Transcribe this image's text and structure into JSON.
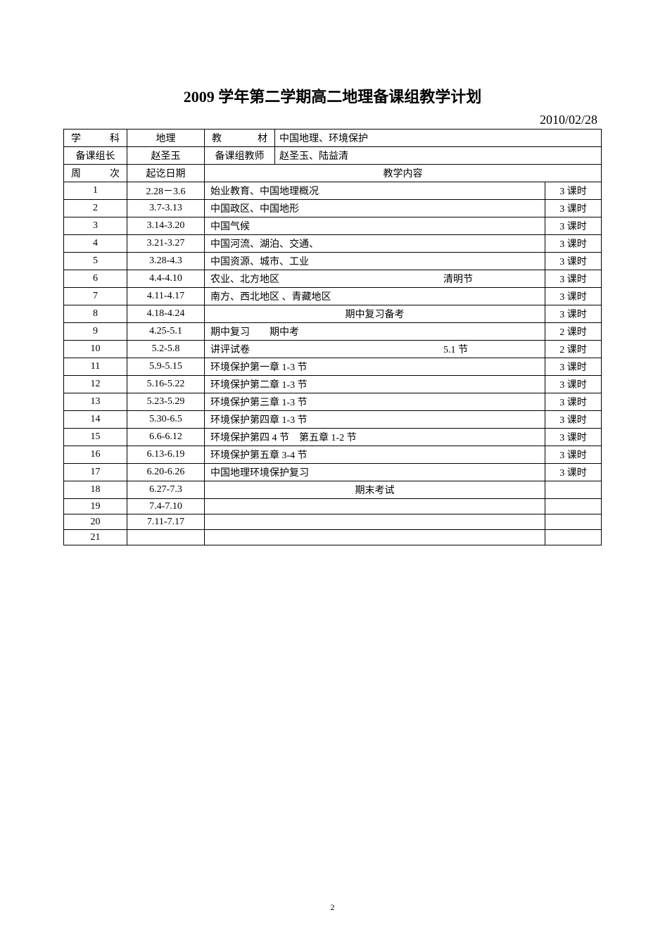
{
  "document": {
    "title": "2009 学年第二学期高二地理备课组教学计划",
    "date": "2010/02/28",
    "page_number": "2",
    "colors": {
      "background": "#ffffff",
      "text": "#000000",
      "border": "#000000"
    },
    "typography": {
      "title_fontsize": 22,
      "date_fontsize": 18,
      "body_fontsize": 14,
      "font_family": "SimSun"
    }
  },
  "header": {
    "subject_label": "学　　科",
    "subject_value": "地理",
    "textbook_label": "教　　材",
    "textbook_value": "中国地理、环境保护",
    "leader_label": "备课组长",
    "leader_value": "赵圣玉",
    "teachers_label": "备课组教师",
    "teachers_value": "赵圣玉、陆益清"
  },
  "columns": {
    "week": "周　　次",
    "date_range": "起讫日期",
    "content": "教学内容"
  },
  "rows": [
    {
      "week": "1",
      "date": "2.28－3.6",
      "content": "始业教育、中国地理概况",
      "note": "",
      "hours": "3 课时"
    },
    {
      "week": "2",
      "date": "3.7-3.13",
      "content": "中国政区、中国地形",
      "note": "",
      "hours": "3 课时"
    },
    {
      "week": "3",
      "date": "3.14-3.20",
      "content": "中国气候",
      "note": "",
      "hours": "3 课时"
    },
    {
      "week": "4",
      "date": "3.21-3.27",
      "content": "中国河流、湖泊、交通、",
      "note": "",
      "hours": "3 课时"
    },
    {
      "week": "5",
      "date": "3.28-4.3",
      "content": "中国资源、城市、工业",
      "note": "",
      "hours": "3 课时"
    },
    {
      "week": "6",
      "date": "4.4-4.10",
      "content": "农业、北方地区",
      "note": "清明节",
      "hours": "3 课时"
    },
    {
      "week": "7",
      "date": "4.11-4.17",
      "content": "南方、西北地区 、青藏地区",
      "note": "",
      "hours": "3 课时"
    },
    {
      "week": "8",
      "date": "4.18-4.24",
      "content_center": "期中复习备考",
      "note": "",
      "hours": "3 课时"
    },
    {
      "week": "9",
      "date": "4.25-5.1",
      "content": "期中复习　　期中考",
      "note": "",
      "hours": "2 课时"
    },
    {
      "week": "10",
      "date": "5.2-5.8",
      "content": "讲评试卷",
      "note": "5.1 节",
      "hours": "2 课时"
    },
    {
      "week": "11",
      "date": "5.9-5.15",
      "content": "环境保护第一章 1-3 节",
      "note": "",
      "hours": "3 课时"
    },
    {
      "week": "12",
      "date": "5.16-5.22",
      "content": "环境保护第二章 1-3 节",
      "note": "",
      "hours": "3 课时"
    },
    {
      "week": "13",
      "date": "5.23-5.29",
      "content": "环境保护第三章 1-3 节",
      "note": "",
      "hours": "3 课时"
    },
    {
      "week": "14",
      "date": "5.30-6.5",
      "content": "环境保护第四章 1-3 节",
      "note": "",
      "hours": "3 课时"
    },
    {
      "week": "15",
      "date": "6.6-6.12",
      "content": "环境保护第四 4 节　第五章 1-2 节",
      "note": "",
      "hours": "3 课时"
    },
    {
      "week": "16",
      "date": "6.13-6.19",
      "content": "环境保护第五章 3-4 节",
      "note": "",
      "hours": "3 课时"
    },
    {
      "week": "17",
      "date": "6.20-6.26",
      "content": "中国地理环境保护复习",
      "note": "",
      "hours": "3 课时",
      "hours_shift": true
    },
    {
      "week": "18",
      "date": "6.27-7.3",
      "content_center": "期末考试",
      "note": "",
      "hours": ""
    },
    {
      "week": "19",
      "date": "7.4-7.10",
      "content": "",
      "note": "",
      "hours": ""
    },
    {
      "week": "20",
      "date": "7.11-7.17",
      "content": "",
      "note": "",
      "hours": ""
    },
    {
      "week": "21",
      "date": "",
      "content": "",
      "note": "",
      "hours": ""
    }
  ]
}
